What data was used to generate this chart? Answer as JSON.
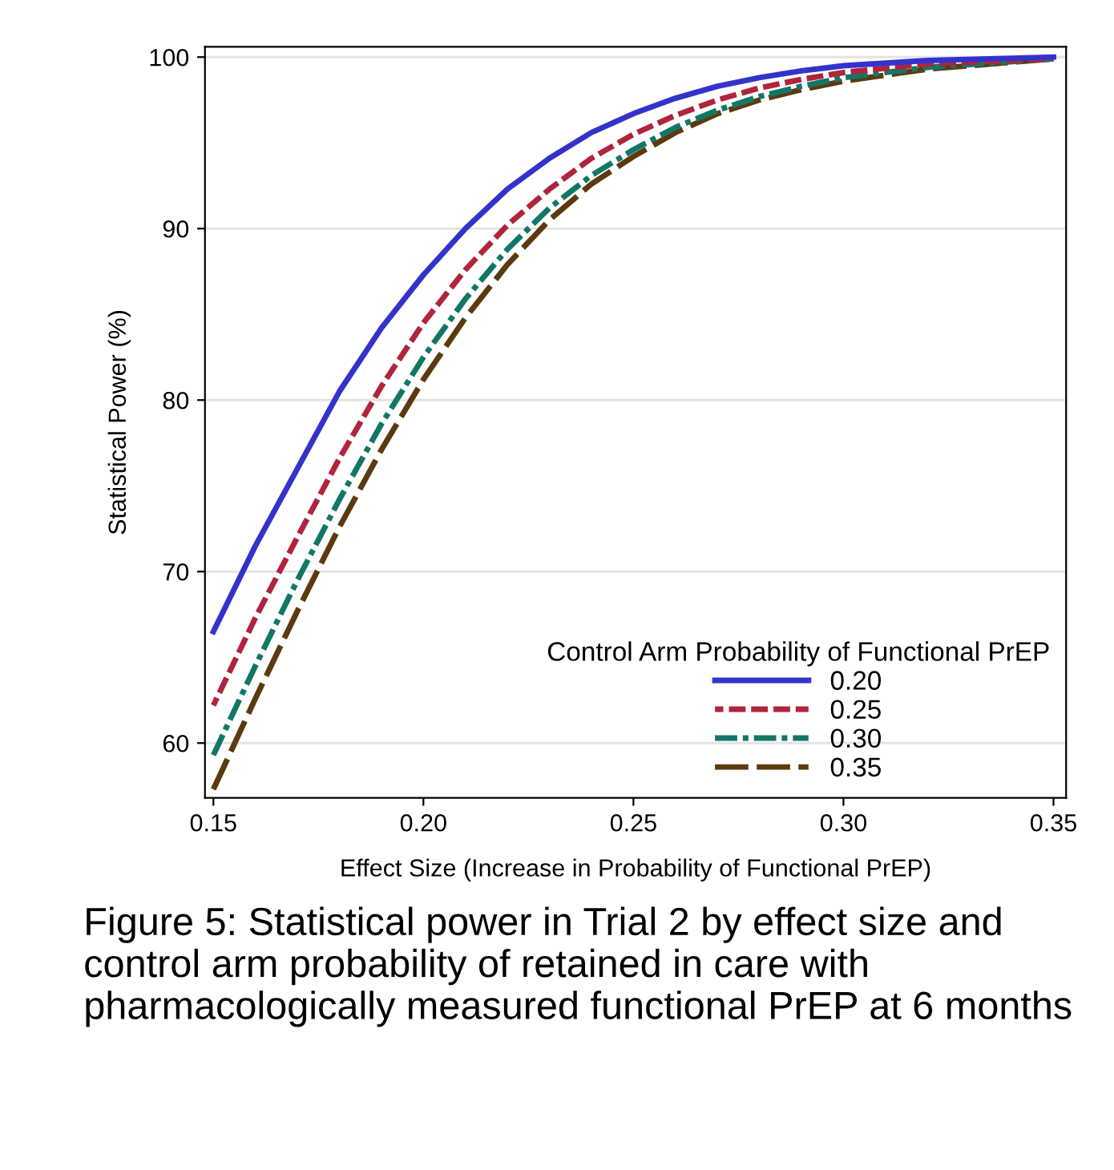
{
  "chart_data": {
    "type": "line",
    "xlabel": "Effect Size (Increase in Probability of Functional PrEP)",
    "ylabel": "Statistical Power (%)",
    "legend_title": "Control Arm Probability of Functional PrEP",
    "x": [
      0.15,
      0.16,
      0.17,
      0.18,
      0.19,
      0.2,
      0.21,
      0.22,
      0.23,
      0.24,
      0.25,
      0.26,
      0.27,
      0.28,
      0.29,
      0.3,
      0.32,
      0.35
    ],
    "series": [
      {
        "name": "0.20",
        "color": "#3333cc",
        "line_style": "solid",
        "values": [
          66.5,
          71.5,
          76,
          80.5,
          84.2,
          87.3,
          90,
          92.3,
          94.1,
          95.6,
          96.7,
          97.6,
          98.3,
          98.8,
          99.2,
          99.5,
          99.8,
          100
        ]
      },
      {
        "name": "0.25",
        "color": "#b0243c",
        "line_style": "dashed",
        "values": [
          62.2,
          67.3,
          72,
          76.6,
          80.8,
          84.5,
          87.6,
          90.2,
          92.3,
          94.1,
          95.5,
          96.6,
          97.5,
          98.2,
          98.7,
          99.1,
          99.6,
          99.9
        ]
      },
      {
        "name": "0.30",
        "color": "#117766",
        "line_style": "dashdot",
        "values": [
          59.3,
          64.5,
          69.5,
          74.2,
          78.6,
          82.5,
          85.9,
          88.8,
          91.2,
          93.1,
          94.6,
          95.9,
          96.9,
          97.7,
          98.3,
          98.8,
          99.4,
          99.9
        ]
      },
      {
        "name": "0.35",
        "color": "#5c3a0e",
        "line_style": "longdash",
        "values": [
          57.3,
          62.6,
          67.7,
          72.6,
          77.1,
          81.2,
          84.8,
          87.9,
          90.5,
          92.6,
          94.2,
          95.6,
          96.7,
          97.5,
          98.1,
          98.6,
          99.3,
          99.9
        ]
      }
    ],
    "xlim": [
      0.148,
      0.353
    ],
    "ylim": [
      56.8,
      100.6
    ],
    "xticks": [
      {
        "value": 0.15,
        "label": "0.15"
      },
      {
        "value": 0.2,
        "label": "0.20"
      },
      {
        "value": 0.25,
        "label": "0.25"
      },
      {
        "value": 0.3,
        "label": "0.30"
      },
      {
        "value": 0.35,
        "label": "0.35"
      }
    ],
    "yticks": [
      60,
      70,
      80,
      90,
      100
    ],
    "grid": "y",
    "legend": "bottom right",
    "marker": "none",
    "annotations": [
      "Figure 5: Statistical power in Trial 2 by effect size and control arm probability of retained in care with pharmacologically measured functional PrEP at 6 months"
    ]
  }
}
